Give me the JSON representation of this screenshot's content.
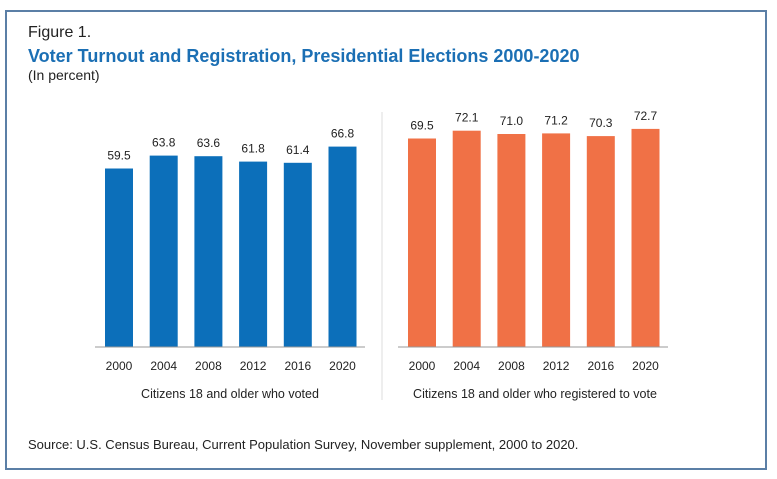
{
  "figure_label": "Figure 1.",
  "chart_data": {
    "type": "bar",
    "title": "Voter Turnout and Registration, Presidential Elections 2000-2020",
    "subtitle": "(In percent)",
    "ylim": [
      0,
      85
    ],
    "grid": false,
    "categories": [
      "2000",
      "2004",
      "2008",
      "2012",
      "2016",
      "2020"
    ],
    "series": [
      {
        "name": "Citizens 18 and older who voted",
        "color": "#0c6fba",
        "values": [
          59.5,
          63.8,
          63.6,
          61.8,
          61.4,
          66.8
        ]
      },
      {
        "name": "Citizens 18 and older who registered to vote",
        "color": "#f07146",
        "values": [
          69.5,
          72.1,
          71.0,
          71.2,
          70.3,
          72.7
        ]
      }
    ],
    "source": "Source: U.S. Census Bureau, Current Population Survey, November supplement, 2000 to 2020."
  }
}
